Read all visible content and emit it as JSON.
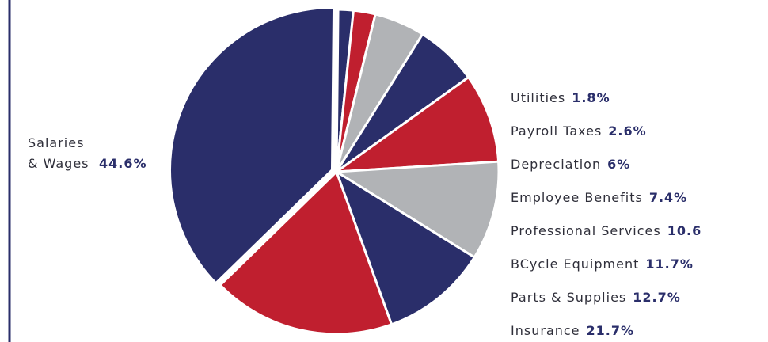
{
  "chart_data": {
    "type": "pie",
    "categories": [
      "Utilities",
      "Payroll Taxes",
      "Depreciation",
      "Employee Benefits",
      "Professional Services",
      "BCycle Equipment",
      "Parts & Supplies",
      "Insurance",
      "Salaries & Wages"
    ],
    "values": [
      1.8,
      2.6,
      6,
      7.4,
      10.6,
      11.7,
      12.7,
      21.7,
      44.6
    ],
    "value_labels": [
      "1.8%",
      "2.6%",
      "6%",
      "7.4%",
      "10.6",
      "11.7%",
      "12.7%",
      "21.7%",
      "44.6%"
    ],
    "colors": [
      "#2a2e6a",
      "#c01f2f",
      "#b1b3b6",
      "#2a2e6a",
      "#c01f2f",
      "#b1b3b6",
      "#2a2e6a",
      "#c01f2f",
      "#2a2e6a"
    ]
  }
}
